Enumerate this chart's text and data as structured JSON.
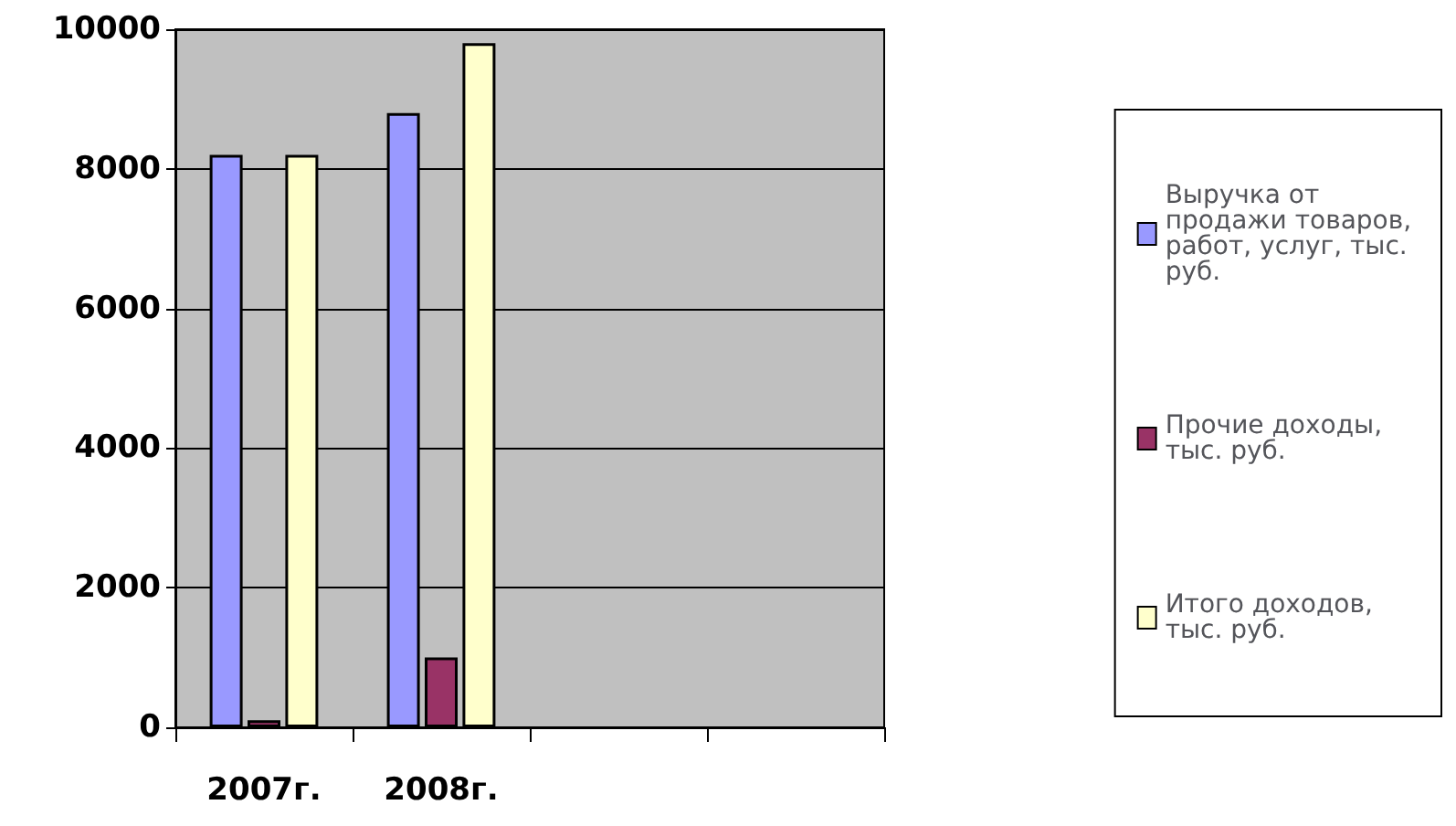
{
  "chart_data": {
    "type": "bar",
    "categories": [
      "2007г.",
      "2008г.",
      null,
      null
    ],
    "series": [
      {
        "name": "Выручка от продажи товаров, работ, услуг, тыс. руб.",
        "color": "#9999ff",
        "values": [
          8200,
          8800,
          null,
          null
        ]
      },
      {
        "name": "Прочие доходы, тыс. руб.",
        "color": "#993366",
        "values": [
          100,
          1000,
          null,
          null
        ]
      },
      {
        "name": "Итого доходов, тыс. руб.",
        "color": "#ffffcc",
        "values": [
          8200,
          9800,
          null,
          null
        ]
      }
    ],
    "ylim": [
      0,
      10000
    ],
    "yticks": [
      0,
      2000,
      4000,
      6000,
      8000,
      10000
    ],
    "grid": "y",
    "legend": "right"
  }
}
